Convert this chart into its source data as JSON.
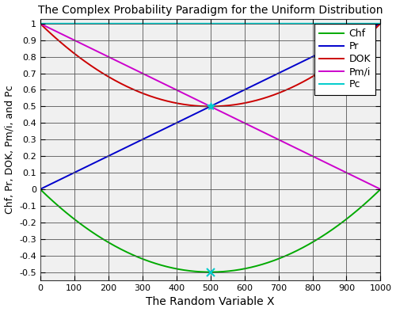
{
  "title": "The Complex Probability Paradigm for the Uniform Distribution",
  "xlabel": "The Random Variable X",
  "ylabel": "Chf, Pr, DOK, Pm/i, and Pc",
  "x_min": 0,
  "x_max": 1000,
  "y_min": -0.5,
  "y_max": 1.0,
  "xticks": [
    0,
    100,
    200,
    300,
    400,
    500,
    600,
    700,
    800,
    900,
    1000
  ],
  "yticks": [
    -0.5,
    -0.4,
    -0.3,
    -0.2,
    -0.1,
    0,
    0.1,
    0.2,
    0.3,
    0.4,
    0.5,
    0.6,
    0.7,
    0.8,
    0.9,
    1
  ],
  "line_colors": {
    "Chf": "#00aa00",
    "Pr": "#0000cc",
    "DOK": "#cc0000",
    "Pm/i": "#cc00cc",
    "Pc": "#00cccc"
  },
  "legend_labels": [
    "Chf",
    "Pr",
    "DOK",
    "Pm/i",
    "Pc"
  ],
  "marker_color": "#00cccc",
  "plot_bg_color": "#f0f0f0",
  "fig_bg_color": "#ffffff",
  "grid_color": "#555555",
  "figsize": [
    5.0,
    3.94
  ],
  "dpi": 100,
  "title_fontsize": 10,
  "label_fontsize": 10,
  "ylabel_fontsize": 9,
  "tick_fontsize": 8,
  "legend_fontsize": 9,
  "linewidth": 1.4
}
